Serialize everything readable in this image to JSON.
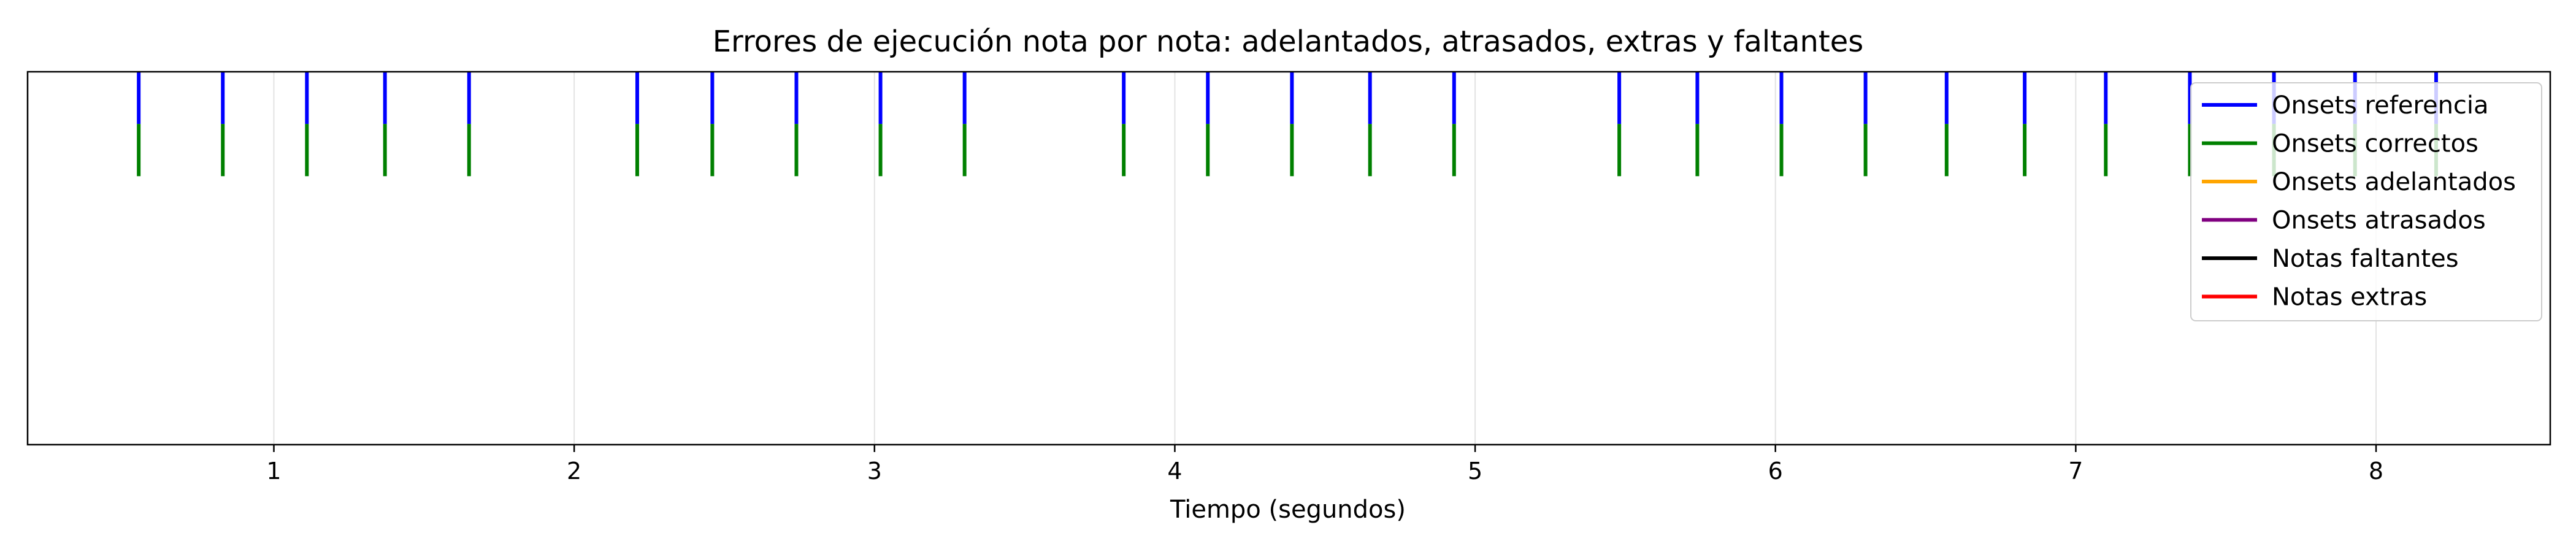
{
  "chart_data": {
    "type": "scatter",
    "title": "Errores de ejecución nota por nota: adelantados, atrasados, extras y faltantes",
    "xlabel": "Tiempo (segundos)",
    "ylabel": "",
    "xlim": [
      0.18,
      8.58
    ],
    "ylim": [
      0,
      1
    ],
    "x_ticks": [
      1,
      2,
      3,
      4,
      5,
      6,
      7,
      8
    ],
    "x_tick_labels": [
      "1",
      "2",
      "3",
      "4",
      "5",
      "6",
      "7",
      "8"
    ],
    "grid": "x",
    "legend_position": "top-right",
    "series": [
      {
        "name": "Onsets referencia",
        "color": "#0000ff",
        "y_range": [
          0.86,
          1.0
        ],
        "x": [
          0.55,
          0.83,
          1.11,
          1.37,
          1.65,
          2.21,
          2.46,
          2.74,
          3.02,
          3.3,
          3.83,
          4.11,
          4.39,
          4.65,
          4.93,
          5.48,
          5.74,
          6.02,
          6.3,
          6.57,
          6.83,
          7.1,
          7.38,
          7.66,
          7.93,
          8.2
        ]
      },
      {
        "name": "Onsets correctos",
        "color": "#008000",
        "y_range": [
          0.72,
          0.86
        ],
        "x": [
          0.55,
          0.83,
          1.11,
          1.37,
          1.65,
          2.21,
          2.46,
          2.74,
          3.02,
          3.3,
          3.83,
          4.11,
          4.39,
          4.65,
          4.93,
          5.48,
          5.74,
          6.02,
          6.3,
          6.57,
          6.83,
          7.1,
          7.38,
          7.66,
          7.93,
          8.2
        ]
      },
      {
        "name": "Onsets adelantados",
        "color": "#ffa500",
        "x": []
      },
      {
        "name": "Onsets atrasados",
        "color": "#800080",
        "x": []
      },
      {
        "name": "Notas faltantes",
        "color": "#000000",
        "x": []
      },
      {
        "name": "Notas extras",
        "color": "#ff0000",
        "x": []
      }
    ]
  }
}
